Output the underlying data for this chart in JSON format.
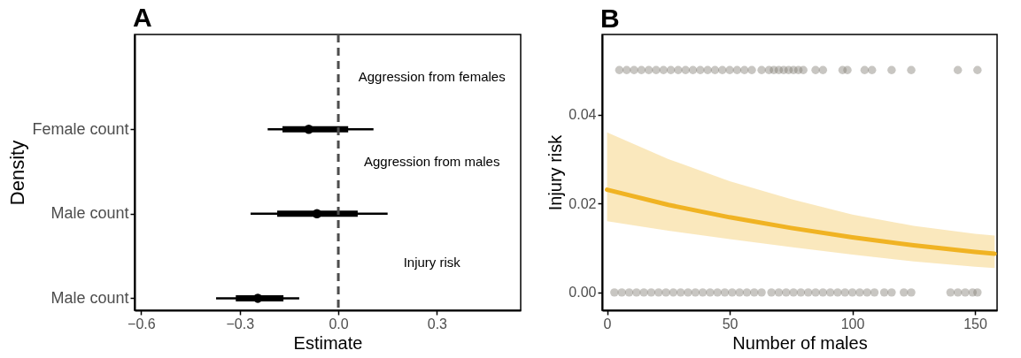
{
  "chart_data": [
    {
      "type": "box",
      "title": "A",
      "orientation": "horizontal",
      "xlabel": "Estimate",
      "ylabel": "Density",
      "categories": [
        "Female count",
        "Male count",
        "Male count"
      ],
      "boxes": [
        {
          "low": -0.215,
          "q1": -0.17,
          "median": -0.09,
          "q3": 0.03,
          "high": 0.107
        },
        {
          "low": -0.267,
          "q1": -0.186,
          "median": -0.065,
          "q3": 0.059,
          "high": 0.15
        },
        {
          "low": -0.372,
          "q1": -0.312,
          "median": -0.245,
          "q3": -0.167,
          "high": -0.119
        }
      ],
      "xlim": [
        -0.62,
        0.555
      ],
      "xticks": [
        -0.6,
        -0.3,
        {
          "value": 0,
          "label": "0.0"
        },
        0.3
      ],
      "ref_lines": [
        {
          "axis": "x",
          "value": 0,
          "line_style": "dashed",
          "color": "#4d4d4d"
        }
      ],
      "annotations": [
        "Aggression from females",
        "Aggression from males",
        "Injury risk"
      ]
    },
    {
      "type": "scatter",
      "title": "B",
      "xlabel": "Number of males",
      "ylabel": "Injury risk",
      "xlim": [
        -2,
        159
      ],
      "xticks": [
        0,
        50,
        100,
        150
      ],
      "ylim": [
        -0.004,
        0.058
      ],
      "yticks": [
        {
          "value": 0,
          "label": "0.00"
        },
        {
          "value": 0.02,
          "label": "0.02"
        },
        {
          "value": 0.04,
          "label": "0.04"
        }
      ],
      "series": [
        {
          "type": "scatter",
          "color": "#858178",
          "x": [
            3,
            6,
            9,
            12,
            15,
            18,
            21,
            24,
            27,
            30,
            33,
            36,
            39,
            42,
            45,
            48,
            51,
            54,
            57,
            60,
            63,
            67,
            70,
            73,
            76,
            79,
            82,
            85,
            88,
            91,
            94,
            97,
            100,
            103,
            106,
            109,
            113,
            116,
            121,
            124,
            140,
            143,
            146,
            149,
            151
          ],
          "values": [
            0,
            0,
            0,
            0,
            0,
            0,
            0,
            0,
            0,
            0,
            0,
            0,
            0,
            0,
            0,
            0,
            0,
            0,
            0,
            0,
            0,
            0,
            0,
            0,
            0,
            0,
            0,
            0,
            0,
            0,
            0,
            0,
            0,
            0,
            0,
            0,
            0,
            0,
            0,
            0,
            0,
            0,
            0,
            0,
            0
          ]
        },
        {
          "type": "scatter",
          "color": "#858178",
          "x": [
            5,
            8,
            11,
            14,
            17,
            20,
            23,
            26,
            29,
            32,
            35,
            38,
            41,
            44,
            47,
            50,
            53,
            56,
            59,
            63,
            66,
            68,
            70,
            72,
            74,
            76,
            78,
            80,
            85,
            88,
            96,
            98,
            105,
            108,
            116,
            124,
            143,
            151
          ],
          "values": [
            0.05,
            0.05,
            0.05,
            0.05,
            0.05,
            0.05,
            0.05,
            0.05,
            0.05,
            0.05,
            0.05,
            0.05,
            0.05,
            0.05,
            0.05,
            0.05,
            0.05,
            0.05,
            0.05,
            0.05,
            0.05,
            0.05,
            0.05,
            0.05,
            0.05,
            0.05,
            0.05,
            0.05,
            0.05,
            0.05,
            0.05,
            0.05,
            0.05,
            0.05,
            0.05,
            0.05,
            0.05,
            0.05
          ]
        },
        {
          "type": "line",
          "color": "#f0b323",
          "x": [
            0,
            25,
            50,
            75,
            100,
            125,
            150,
            158
          ],
          "values": [
            0.0231,
            0.0197,
            0.0169,
            0.0145,
            0.0124,
            0.0106,
            0.0091,
            0.0087
          ],
          "lower": [
            0.016,
            0.0139,
            0.012,
            0.0102,
            0.0085,
            0.007,
            0.0058,
            0.0055
          ],
          "upper": [
            0.036,
            0.03,
            0.025,
            0.021,
            0.0175,
            0.015,
            0.0132,
            0.0128
          ]
        }
      ]
    }
  ]
}
